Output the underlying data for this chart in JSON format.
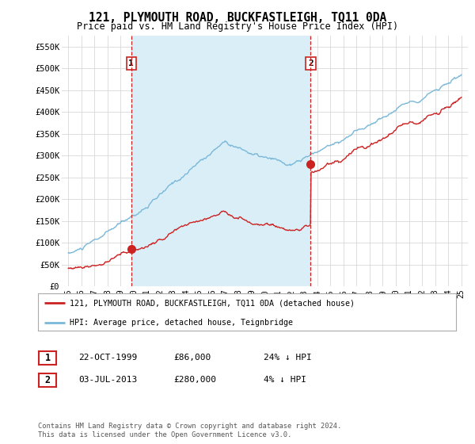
{
  "title": "121, PLYMOUTH ROAD, BUCKFASTLEIGH, TQ11 0DA",
  "subtitle": "Price paid vs. HM Land Registry's House Price Index (HPI)",
  "ylabel_ticks": [
    "£0",
    "£50K",
    "£100K",
    "£150K",
    "£200K",
    "£250K",
    "£300K",
    "£350K",
    "£400K",
    "£450K",
    "£500K",
    "£550K"
  ],
  "ytick_values": [
    0,
    50000,
    100000,
    150000,
    200000,
    250000,
    300000,
    350000,
    400000,
    450000,
    500000,
    550000
  ],
  "ylim": [
    0,
    575000
  ],
  "xlim_start": 1994.5,
  "xlim_end": 2025.5,
  "purchase_1_date": 1999.81,
  "purchase_1_price": 86000,
  "purchase_2_date": 2013.5,
  "purchase_2_price": 280000,
  "hpi_color": "#7ab8d9",
  "hpi_fill_color": "#daeef7",
  "price_color": "#cc2222",
  "vline_color": "#cc2222",
  "legend_label_1": "121, PLYMOUTH ROAD, BUCKFASTLEIGH, TQ11 0DA (detached house)",
  "legend_label_2": "HPI: Average price, detached house, Teignbridge",
  "table_row1": [
    "1",
    "22-OCT-1999",
    "£86,000",
    "24% ↓ HPI"
  ],
  "table_row2": [
    "2",
    "03-JUL-2013",
    "£280,000",
    "4% ↓ HPI"
  ],
  "footer": "Contains HM Land Registry data © Crown copyright and database right 2024.\nThis data is licensed under the Open Government Licence v3.0.",
  "background_color": "#ffffff",
  "grid_color": "#d8d8d8",
  "hpi_seed": 10,
  "red_seed": 77
}
